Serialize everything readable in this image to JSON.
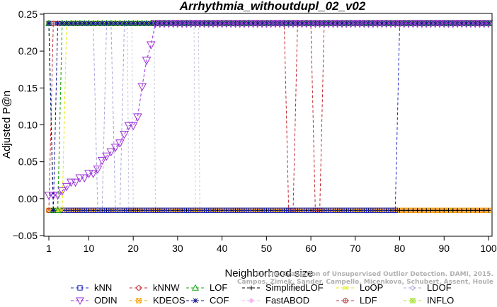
{
  "chart_data": {
    "type": "line",
    "title": "Arrhythmia_withoutdupl_02_v02",
    "xlabel": "Neighborhood size",
    "ylabel": "Adjusted P@n",
    "xlim": [
      1,
      100
    ],
    "ylim": [
      -0.05,
      0.25
    ],
    "xticks": [
      1,
      10,
      20,
      30,
      40,
      50,
      60,
      70,
      80,
      90,
      100
    ],
    "yticks": [
      -0.05,
      0.0,
      0.05,
      0.1,
      0.15,
      0.2,
      0.25
    ],
    "ytick_labels": [
      "−0.05",
      "0.00",
      "0.05",
      "0.10",
      "0.15",
      "0.20",
      "0.25"
    ],
    "grid": false,
    "legend_position": "bottom",
    "series": [
      {
        "name": "kNN",
        "color": "#1f2bbf",
        "marker": "square",
        "default": 0.2375,
        "points": [
          [
            1,
            0.2375
          ],
          [
            2,
            -0.0158
          ],
          [
            3,
            -0.0158
          ],
          [
            79,
            -0.0158
          ],
          [
            80,
            0.2375
          ]
        ]
      },
      {
        "name": "kNNW",
        "color": "#c0282d",
        "marker": "circle",
        "default": 0.2375,
        "points": [
          [
            1,
            -0.0158
          ],
          [
            2,
            0.2375
          ],
          [
            54,
            0.2375
          ],
          [
            55,
            -0.0158
          ],
          [
            56,
            -0.0158
          ],
          [
            57,
            0.2375
          ],
          [
            60,
            0.2375
          ],
          [
            61,
            -0.0158
          ],
          [
            62,
            -0.0158
          ],
          [
            63,
            0.2375
          ]
        ]
      },
      {
        "name": "LOF",
        "color": "#1aa31a",
        "marker": "triangle-up",
        "default": 0.2375,
        "points": [
          [
            1,
            0.2375
          ],
          [
            2,
            -0.0158
          ],
          [
            3,
            -0.0158
          ],
          [
            4,
            0.2375
          ]
        ]
      },
      {
        "name": "SimplifiedLOF",
        "color": "#000000",
        "marker": "plus",
        "default": -0.0158,
        "points": [
          [
            1,
            0.2375
          ],
          [
            2,
            -0.0158
          ],
          [
            79,
            -0.0158
          ],
          [
            80,
            -0.0158
          ]
        ]
      },
      {
        "name": "LoOP",
        "color": "#e6e600",
        "marker": "x",
        "default": 0.2375,
        "points": [
          [
            1,
            0.2375
          ],
          [
            2,
            -0.0158
          ],
          [
            3,
            -0.0158
          ],
          [
            4,
            -0.0158
          ],
          [
            5,
            0.2375
          ]
        ]
      },
      {
        "name": "LDOF",
        "color": "#a6a6d8",
        "marker": "diamond",
        "default": 0.2375,
        "points": [
          [
            1,
            0.2375
          ],
          [
            11,
            0.2375
          ],
          [
            12,
            -0.0158
          ],
          [
            13,
            -0.0158
          ],
          [
            14,
            0.2375
          ],
          [
            15,
            0.2375
          ],
          [
            16,
            -0.0158
          ],
          [
            17,
            -0.0158
          ],
          [
            18,
            0.2375
          ]
        ]
      },
      {
        "name": "ODIN",
        "color": "#9b30d9",
        "marker": "triangle-down",
        "default": null,
        "points": [
          [
            1,
            0.0045
          ],
          [
            2,
            0.0045
          ],
          [
            3,
            0.0045
          ],
          [
            4,
            0.0104
          ],
          [
            5,
            0.0163
          ],
          [
            6,
            0.0222
          ],
          [
            7,
            0.0222
          ],
          [
            8,
            0.0281
          ],
          [
            9,
            0.0281
          ],
          [
            10,
            0.034
          ],
          [
            11,
            0.034
          ],
          [
            12,
            0.0399
          ],
          [
            13,
            0.0517
          ],
          [
            14,
            0.0576
          ],
          [
            15,
            0.0635
          ],
          [
            16,
            0.0694
          ],
          [
            17,
            0.0753
          ],
          [
            18,
            0.0871
          ],
          [
            19,
            0.0989
          ],
          [
            20,
            0.0989
          ],
          [
            21,
            0.1107
          ],
          [
            22,
            0.1518
          ],
          [
            23,
            0.1873
          ],
          [
            24,
            0.2083
          ],
          [
            25,
            0.2375
          ]
        ]
      },
      {
        "name": "KDEOS",
        "color": "#f5a000",
        "marker": "square-x",
        "default": -0.0158,
        "points": [
          [
            1,
            -0.0158
          ],
          [
            100,
            -0.0158
          ]
        ]
      },
      {
        "name": "COF",
        "color": "#0d0d8c",
        "marker": "asterisk",
        "default": 0.2375,
        "points": [
          [
            1,
            0.2375
          ],
          [
            2,
            -0.0158
          ],
          [
            3,
            0.2375
          ]
        ]
      },
      {
        "name": "FastABOD",
        "color": "#f5b8f0",
        "marker": "diamond-filled",
        "default": -0.0158,
        "points": [
          [
            1,
            -0.0158
          ],
          [
            100,
            -0.0158
          ]
        ]
      },
      {
        "name": "LDF",
        "color": "#b84040",
        "marker": "circle-plus",
        "default": 0.2375,
        "points": [
          [
            1,
            0.2375
          ],
          [
            100,
            0.2375
          ]
        ]
      },
      {
        "name": "INFLO",
        "color": "#a8e03a",
        "marker": "star",
        "default": 0.2375,
        "points": [
          [
            1,
            0.2375
          ],
          [
            2,
            -0.0158
          ],
          [
            3,
            -0.0158
          ],
          [
            4,
            0.2375
          ]
        ]
      }
    ],
    "faint_spikes": [
      {
        "color": "#c8c8e0",
        "x": [
          19,
          20,
          25,
          34,
          35
        ]
      }
    ],
    "watermark": "Campos, Zimek, Sander, Campello, Micenkova, Schubert, Assent, Houle",
    "watermark_title": "On the Evaluation of Unsupervised Outlier Detection. DAMI, 2015."
  }
}
